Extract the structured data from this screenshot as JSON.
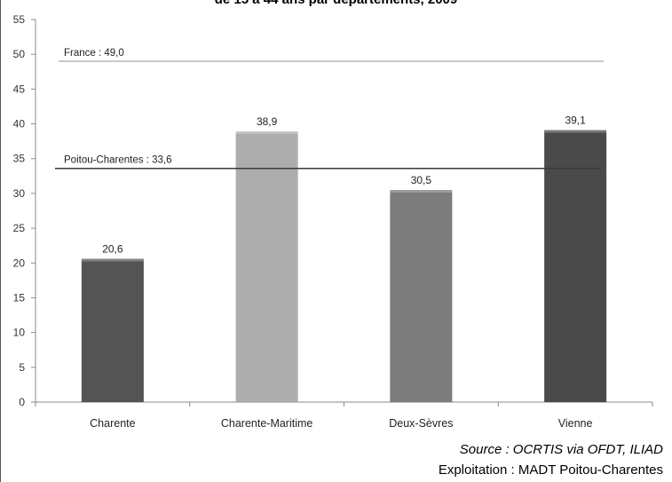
{
  "chart_data": {
    "type": "bar",
    "title": "de 15 à 44 ans par départements, 2009",
    "categories": [
      "Charente",
      "Charente-Maritime",
      "Deux-Sèvres",
      "Vienne"
    ],
    "values": [
      20.6,
      38.9,
      30.5,
      39.1
    ],
    "value_labels": [
      "20,6",
      "38,9",
      "30,5",
      "39,1"
    ],
    "bar_colors": [
      "#545454",
      "#adadad",
      "#7c7c7c",
      "#4a4a4a"
    ],
    "ylim": [
      0,
      55
    ],
    "yticks": [
      0,
      5,
      10,
      15,
      20,
      25,
      30,
      35,
      40,
      45,
      50,
      55
    ],
    "reference_lines": [
      {
        "label": "France : 49,0",
        "value": 49.0,
        "color": "#b8b8b8"
      },
      {
        "label": "Poitou-Charentes : 33,6",
        "value": 33.6,
        "color": "#3a3a3a"
      }
    ],
    "grid": false,
    "xlabel": "",
    "ylabel": ""
  },
  "footer": {
    "source": "Source : OCRTIS via OFDT, ILIAD",
    "exploitation": "Exploitation : MADT Poitou-Charentes"
  }
}
